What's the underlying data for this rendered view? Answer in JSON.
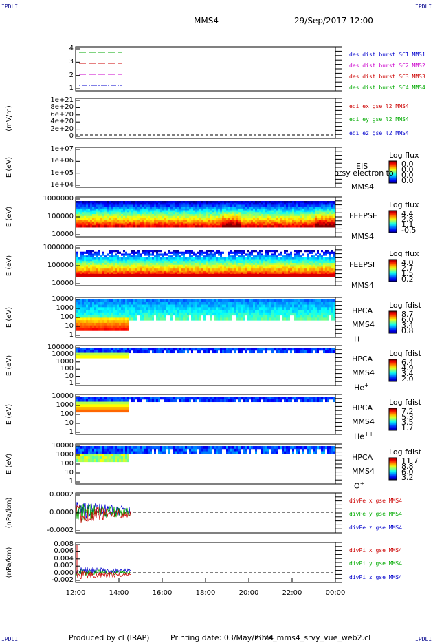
{
  "header": {
    "corner_tl": "IPDLI",
    "corner_tr": "IPDLI",
    "corner_bl": "IPDLI",
    "corner_br": "IPDLI",
    "spacecraft": "MMS4",
    "datetime": "29/Sep/2017 12:00"
  },
  "footer": {
    "produced": "Produced by cl (IRAP)",
    "printing_date": "Printing date: 03/May/2024",
    "filename": "mms_mms4_srvy_vue_web2.cl"
  },
  "time_axis": {
    "ticks": [
      "12:00",
      "14:00",
      "16:00",
      "18:00",
      "20:00",
      "22:00",
      "00:00"
    ]
  },
  "colors": {
    "blue": "#0000cc",
    "red": "#cc0000",
    "green": "#00aa00",
    "magenta": "#cc00cc"
  },
  "panels": [
    {
      "id": "burst",
      "yticks": [
        "4",
        "3",
        "2",
        "1"
      ],
      "ylabel": "",
      "legend": [
        {
          "text": "des dist burst SC1 MMS1",
          "color": "#0000cc"
        },
        {
          "text": "des dist burst SC2 MMS2",
          "color": "#cc00cc"
        },
        {
          "text": "des dist burst SC3 MMS3",
          "color": "#cc0000"
        },
        {
          "text": "des dist burst SC4 MMS4",
          "color": "#00aa00"
        }
      ]
    },
    {
      "id": "efield",
      "yticks": [
        "1e+21",
        "8e+20",
        "6e+20",
        "4e+20",
        "2e+20",
        "0"
      ],
      "ylabel": "(mV/m)",
      "legend": [
        {
          "text": "edi ex gse l2 MMS4",
          "color": "#cc0000"
        },
        {
          "text": "edi ey gse l2 MMS4",
          "color": "#00aa00"
        },
        {
          "text": "edi ez gse l2 MMS4",
          "color": "#0000cc"
        }
      ]
    },
    {
      "id": "eis",
      "yticks": [
        "1e+07",
        "1e+06",
        "1e+05",
        "1e+04"
      ],
      "ylabel": "E (eV)",
      "inst": [
        "EIS",
        "MMS4"
      ],
      "overlay": "brsy electron to",
      "cb": {
        "title": "Log flux",
        "vals": [
          "0.0",
          "0.0",
          "0.0",
          "0.0"
        ]
      }
    },
    {
      "id": "feepse",
      "yticks": [
        "1000000",
        "100000",
        "10000"
      ],
      "ylabel": "E (eV)",
      "inst": [
        "FEEPSE",
        "MMS4"
      ],
      "cb": {
        "title": "Log flux",
        "vals": [
          "4.4",
          "2.8",
          "1.1",
          "-0.5"
        ]
      }
    },
    {
      "id": "feepsi",
      "yticks": [
        "1000000",
        "100000",
        "10000"
      ],
      "ylabel": "E (eV)",
      "inst": [
        "FEEPSI",
        "MMS4"
      ],
      "cb": {
        "title": "Log flux",
        "vals": [
          "4.0",
          "2.7",
          "1.5",
          "0.2"
        ]
      }
    },
    {
      "id": "hpca_h",
      "yticks": [
        "10000",
        "1000",
        "100",
        "10",
        "1"
      ],
      "ylabel": "E (eV)",
      "inst": [
        "HPCA",
        "MMS4"
      ],
      "ion": "H",
      "ion_sup": "+",
      "cb": {
        "title": "Log fdist",
        "vals": [
          "8.7",
          "6.0",
          "3.4",
          "0.8"
        ]
      }
    },
    {
      "id": "hpca_he",
      "yticks": [
        "100000",
        "10000",
        "1000",
        "100",
        "10",
        "1"
      ],
      "ylabel": "E (eV)",
      "inst": [
        "HPCA",
        "MMS4"
      ],
      "ion": "He",
      "ion_sup": "+",
      "cb": {
        "title": "Log fdist",
        "vals": [
          "6.4",
          "4.9",
          "3.4",
          "2.0"
        ]
      }
    },
    {
      "id": "hpca_he2",
      "yticks": [
        "10000",
        "1000",
        "100",
        "10",
        "1"
      ],
      "ylabel": "E (eV)",
      "inst": [
        "HPCA",
        "MMS4"
      ],
      "ion": "He",
      "ion_sup": "++",
      "cb": {
        "title": "Log fdist",
        "vals": [
          "7.2",
          "5.3",
          "3.5",
          "1.7"
        ]
      }
    },
    {
      "id": "hpca_o",
      "yticks": [
        "10000",
        "1000",
        "100",
        "10",
        "1"
      ],
      "ylabel": "E (eV)",
      "inst": [
        "HPCA",
        "MMS4"
      ],
      "ion": "O",
      "ion_sup": "+",
      "cb": {
        "title": "Log fdist",
        "vals": [
          "11.7",
          "8.8",
          "6.0",
          "3.2"
        ]
      }
    },
    {
      "id": "divpe",
      "yticks": [
        "0.0002",
        "0.0000",
        "-0.0002"
      ],
      "ylabel": "(nPa/km)",
      "legend": [
        {
          "text": "divPe x gse MMS4",
          "color": "#cc0000"
        },
        {
          "text": "divPe y gse MMS4",
          "color": "#00aa00"
        },
        {
          "text": "divPe z gse MMS4",
          "color": "#0000cc"
        }
      ]
    },
    {
      "id": "divpi",
      "yticks": [
        "0.008",
        "0.006",
        "0.004",
        "0.002",
        "0.000",
        "-0.002"
      ],
      "ylabel": "(nPa/km)",
      "legend": [
        {
          "text": "divPi x gse MMS4",
          "color": "#cc0000"
        },
        {
          "text": "divPi y gse MMS4",
          "color": "#00aa00"
        },
        {
          "text": "divPi z gse MMS4",
          "color": "#0000cc"
        }
      ]
    }
  ],
  "chart_data": {
    "type": "heatmap",
    "title": "MMS4",
    "x_range": [
      "29/Sep/2017 12:00",
      "30/Sep/2017 00:00"
    ],
    "data_coverage_end": "14:35",
    "series": [
      {
        "name": "FEEPSE Log flux",
        "clim": [
          -0.5,
          4.4
        ]
      },
      {
        "name": "FEEPSI Log flux",
        "clim": [
          0.2,
          4.0
        ]
      },
      {
        "name": "HPCA H+ Log fdist",
        "clim": [
          0.8,
          8.7
        ]
      },
      {
        "name": "HPCA He+ Log fdist",
        "clim": [
          2.0,
          6.4
        ]
      },
      {
        "name": "HPCA He++ Log fdist",
        "clim": [
          1.7,
          7.2
        ]
      },
      {
        "name": "HPCA O+ Log fdist",
        "clim": [
          3.2,
          11.7
        ]
      }
    ]
  }
}
